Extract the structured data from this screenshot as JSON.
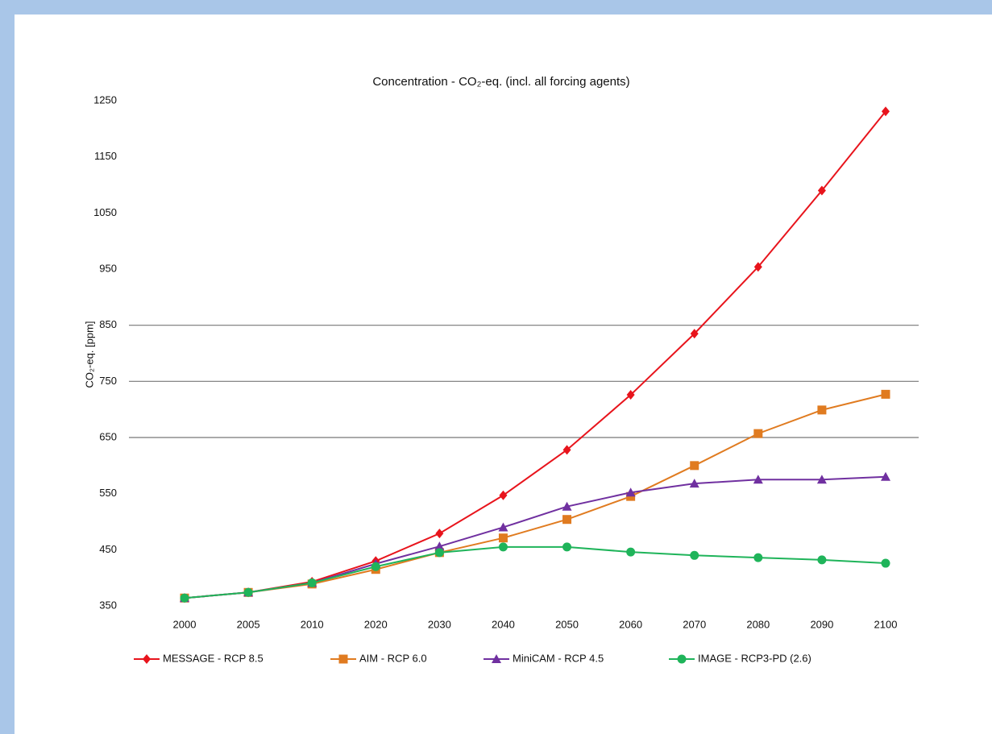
{
  "chart_data": {
    "type": "line",
    "title": "Concentration - CO₂-eq. (incl. all forcing agents)",
    "y_label": "CO₂-eq. [ppm]",
    "categories": [
      "2000",
      "2005",
      "2010",
      "2020",
      "2030",
      "2040",
      "2050",
      "2060",
      "2070",
      "2080",
      "2090",
      "2100"
    ],
    "series": [
      {
        "name": "MESSAGE - RCP 8.5",
        "color": "#e8141c",
        "marker": "diamond",
        "values": [
          364,
          374,
          393,
          430,
          479,
          547,
          628,
          726,
          835,
          954,
          1090,
          1231
        ]
      },
      {
        "name": "AIM - RCP 6.0",
        "color": "#e07b20",
        "marker": "square",
        "values": [
          364,
          374,
          389,
          415,
          445,
          471,
          504,
          545,
          600,
          657,
          699,
          727
        ]
      },
      {
        "name": "MiniCAM - RCP 4.5",
        "color": "#7030a0",
        "marker": "triangle",
        "values": [
          364,
          374,
          391,
          425,
          456,
          490,
          527,
          552,
          568,
          575,
          575,
          580
        ]
      },
      {
        "name": "IMAGE - RCP3-PD (2.6)",
        "color": "#1fb45a",
        "marker": "circle",
        "values": [
          364,
          374,
          391,
          420,
          445,
          455,
          455,
          446,
          440,
          436,
          432,
          426
        ]
      }
    ],
    "ylim": [
      350,
      1250
    ],
    "yticks": [
      350,
      450,
      550,
      650,
      750,
      850,
      950,
      1050,
      1150,
      1250
    ],
    "grid_lines": [
      650,
      750,
      850
    ],
    "legend": "bottom"
  }
}
